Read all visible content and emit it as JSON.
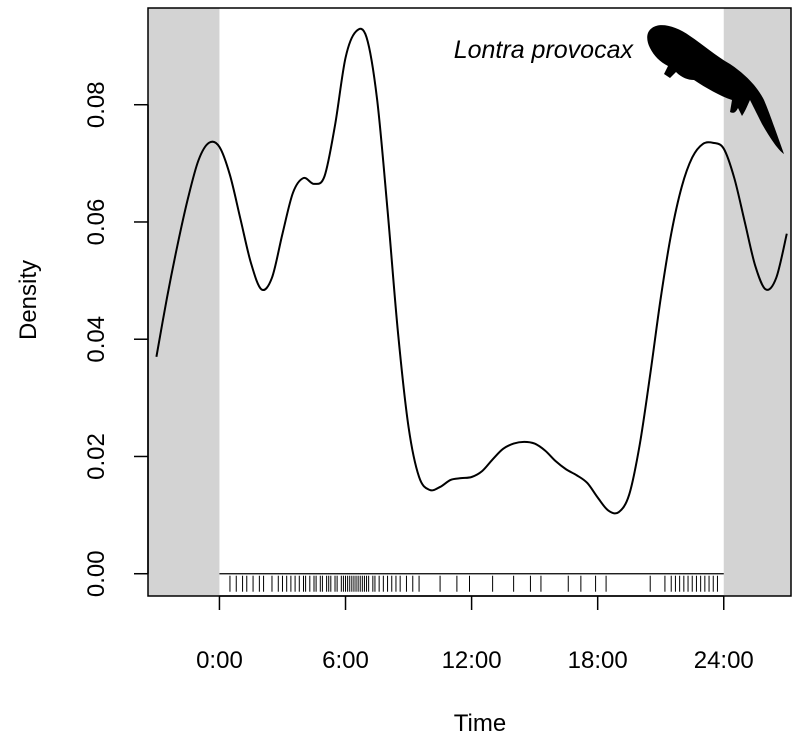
{
  "chart_data": {
    "type": "line",
    "title": "",
    "xlabel": "Time",
    "ylabel": "Density",
    "annotation": "Lontra provocax",
    "silhouette_icon": "otter-silhouette-icon",
    "xlim": [
      -3.4,
      27.2
    ],
    "ylim": [
      -0.0038,
      0.0965
    ],
    "x_ticks": [
      {
        "value": 0,
        "label": "0:00"
      },
      {
        "value": 6,
        "label": "6:00"
      },
      {
        "value": 12,
        "label": "12:00"
      },
      {
        "value": 18,
        "label": "18:00"
      },
      {
        "value": 24,
        "label": "24:00"
      }
    ],
    "y_ticks": [
      {
        "value": 0.0,
        "label": "0.00"
      },
      {
        "value": 0.02,
        "label": "0.02"
      },
      {
        "value": 0.04,
        "label": "0.04"
      },
      {
        "value": 0.06,
        "label": "0.06"
      },
      {
        "value": 0.08,
        "label": "0.08"
      }
    ],
    "shaded_regions": [
      [
        -3.4,
        0
      ],
      [
        24,
        27.2
      ]
    ],
    "shade_color": "#d3d3d3",
    "line_color": "#000000",
    "series": [
      {
        "x": [
          -3.0,
          -2.5,
          -2.0,
          -1.5,
          -1.0,
          -0.5,
          0.0,
          0.5,
          1.0,
          1.5,
          2.0,
          2.5,
          3.0,
          3.5,
          4.0,
          4.5,
          5.0,
          5.5,
          6.0,
          6.5,
          7.0,
          7.5,
          8.0,
          8.5,
          9.0,
          9.5,
          10.0,
          10.5,
          11.0,
          11.5,
          12.0,
          12.5,
          13.0,
          13.5,
          14.0,
          14.5,
          15.0,
          15.5,
          16.0,
          16.5,
          17.0,
          17.5,
          18.0,
          18.5,
          19.0,
          19.5,
          20.0,
          20.5,
          21.0,
          21.5,
          22.0,
          22.5,
          23.0,
          23.5,
          24.0,
          24.5,
          25.0,
          25.5,
          26.0,
          26.5,
          27.0
        ],
        "values": [
          0.037,
          0.047,
          0.056,
          0.064,
          0.0705,
          0.0735,
          0.0728,
          0.068,
          0.0605,
          0.053,
          0.0485,
          0.0505,
          0.058,
          0.065,
          0.0675,
          0.0665,
          0.0678,
          0.0765,
          0.088,
          0.0925,
          0.0915,
          0.081,
          0.062,
          0.041,
          0.025,
          0.0165,
          0.0143,
          0.0148,
          0.016,
          0.0163,
          0.0165,
          0.0175,
          0.0195,
          0.0213,
          0.0222,
          0.0225,
          0.0222,
          0.021,
          0.0192,
          0.0178,
          0.0168,
          0.0155,
          0.013,
          0.0108,
          0.0105,
          0.0135,
          0.022,
          0.034,
          0.047,
          0.058,
          0.066,
          0.071,
          0.0733,
          0.0735,
          0.0725,
          0.0675,
          0.06,
          0.0525,
          0.0485,
          0.0505,
          0.058
        ]
      }
    ],
    "rug": [
      0.5,
      0.8,
      1.1,
      1.3,
      1.6,
      1.9,
      2.1,
      2.5,
      2.8,
      3.0,
      3.2,
      3.4,
      3.6,
      3.8,
      4.0,
      4.1,
      4.3,
      4.5,
      4.6,
      4.8,
      4.9,
      5.1,
      5.2,
      5.3,
      5.5,
      5.6,
      5.8,
      5.9,
      6.0,
      6.1,
      6.2,
      6.3,
      6.4,
      6.5,
      6.6,
      6.7,
      6.8,
      6.9,
      7.0,
      7.1,
      7.3,
      7.4,
      7.6,
      7.8,
      8.0,
      8.2,
      8.4,
      8.6,
      8.9,
      9.2,
      9.5,
      10.5,
      11.3,
      11.9,
      13.0,
      14.0,
      14.8,
      15.3,
      16.6,
      17.2,
      17.9,
      18.4,
      20.5,
      21.2,
      21.5,
      21.7,
      21.9,
      22.1,
      22.3,
      22.5,
      22.7,
      22.9,
      23.1,
      23.3,
      23.5,
      23.7
    ]
  }
}
